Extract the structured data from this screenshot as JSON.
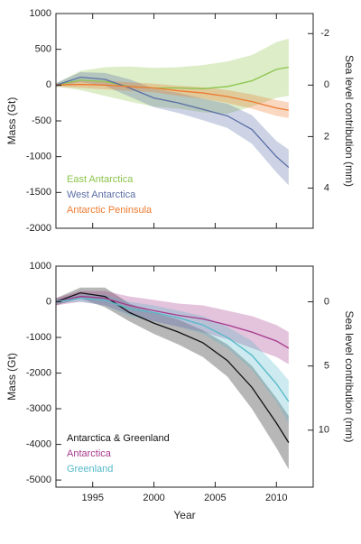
{
  "chart_data": [
    {
      "type": "line",
      "ylabel": "Mass (Gt)",
      "y2label": "Sea level contribution (mm)",
      "x": [
        1992,
        1994,
        1996,
        1998,
        2000,
        2002,
        2004,
        2006,
        2008,
        2010,
        2011
      ],
      "xlim": [
        1992,
        2013
      ],
      "xticks": [
        1995,
        2000,
        2005,
        2010
      ],
      "show_xtick_labels": false,
      "ylim": [
        -2000,
        1000
      ],
      "yticks": [
        -2000,
        -1500,
        -1000,
        -500,
        0,
        500,
        1000
      ],
      "y2lim": [
        -2.78,
        5.56
      ],
      "y2ticks": [
        -2,
        0,
        2,
        4
      ],
      "legend": "lower left",
      "series": [
        {
          "name": "East Antarctica",
          "color": "#8cc44a",
          "values": [
            0,
            70,
            50,
            -20,
            -40,
            -40,
            -50,
            -20,
            60,
            220,
            250
          ],
          "upper": [
            20,
            200,
            250,
            260,
            240,
            250,
            280,
            330,
            420,
            600,
            650
          ],
          "lower": [
            -20,
            -70,
            -150,
            -230,
            -300,
            -330,
            -380,
            -400,
            -300,
            -180,
            -150
          ]
        },
        {
          "name": "West Antarctica",
          "color": "#5a6ea6",
          "values": [
            0,
            110,
            80,
            -40,
            -180,
            -250,
            -340,
            -430,
            -620,
            -1000,
            -1150
          ],
          "upper": [
            30,
            180,
            170,
            80,
            -50,
            -110,
            -190,
            -260,
            -420,
            -780,
            -900
          ],
          "lower": [
            -30,
            40,
            -10,
            -160,
            -310,
            -390,
            -490,
            -600,
            -820,
            -1220,
            -1400
          ]
        },
        {
          "name": "Antarctic Peninsula",
          "color": "#ee7a30",
          "values": [
            0,
            10,
            0,
            -20,
            -40,
            -80,
            -110,
            -160,
            -230,
            -320,
            -350
          ],
          "upper": [
            20,
            60,
            60,
            40,
            20,
            -10,
            -30,
            -70,
            -130,
            -210,
            -240
          ],
          "lower": [
            -20,
            -40,
            -60,
            -80,
            -100,
            -150,
            -190,
            -250,
            -330,
            -430,
            -460
          ]
        }
      ]
    },
    {
      "type": "line",
      "xlabel": "Year",
      "ylabel": "Mass (Gt)",
      "y2label": "Sea level contribution (mm)",
      "x": [
        1992,
        1994,
        1996,
        1998,
        2000,
        2002,
        2004,
        2006,
        2008,
        2010,
        2011
      ],
      "xlim": [
        1992,
        2013
      ],
      "xticks": [
        1995,
        2000,
        2005,
        2010
      ],
      "show_xtick_labels": true,
      "ylim": [
        -5200,
        1000
      ],
      "yticks": [
        -5000,
        -4000,
        -3000,
        -2000,
        -1000,
        0,
        1000
      ],
      "y2lim": [
        -2.78,
        14.44
      ],
      "y2ticks": [
        0,
        5,
        10
      ],
      "legend": "lower left",
      "series": [
        {
          "name": "Antarctica & Greenland",
          "color": "#111111",
          "values": [
            0,
            250,
            150,
            -300,
            -600,
            -850,
            -1150,
            -1650,
            -2400,
            -3400,
            -3950
          ],
          "upper": [
            100,
            400,
            400,
            -50,
            -300,
            -500,
            -800,
            -1200,
            -1800,
            -2700,
            -3200
          ],
          "lower": [
            -100,
            100,
            -150,
            -550,
            -900,
            -1200,
            -1550,
            -2100,
            -3000,
            -4100,
            -4700
          ]
        },
        {
          "name": "Antarctica",
          "color": "#a5388c",
          "values": [
            0,
            150,
            100,
            -100,
            -250,
            -380,
            -480,
            -650,
            -850,
            -1100,
            -1300
          ],
          "upper": [
            100,
            300,
            300,
            150,
            50,
            -50,
            -100,
            -250,
            -400,
            -650,
            -850
          ],
          "lower": [
            -100,
            0,
            -100,
            -350,
            -550,
            -700,
            -850,
            -1050,
            -1300,
            -1550,
            -1750
          ]
        },
        {
          "name": "Greenland",
          "color": "#55b9c9",
          "values": [
            0,
            100,
            50,
            -200,
            -300,
            -450,
            -650,
            -1000,
            -1500,
            -2300,
            -2800
          ],
          "upper": [
            50,
            200,
            200,
            0,
            -100,
            -250,
            -400,
            -700,
            -1100,
            -1800,
            -2200
          ],
          "lower": [
            -50,
            0,
            -100,
            -400,
            -550,
            -700,
            -900,
            -1300,
            -1900,
            -2800,
            -3400
          ]
        }
      ]
    }
  ]
}
